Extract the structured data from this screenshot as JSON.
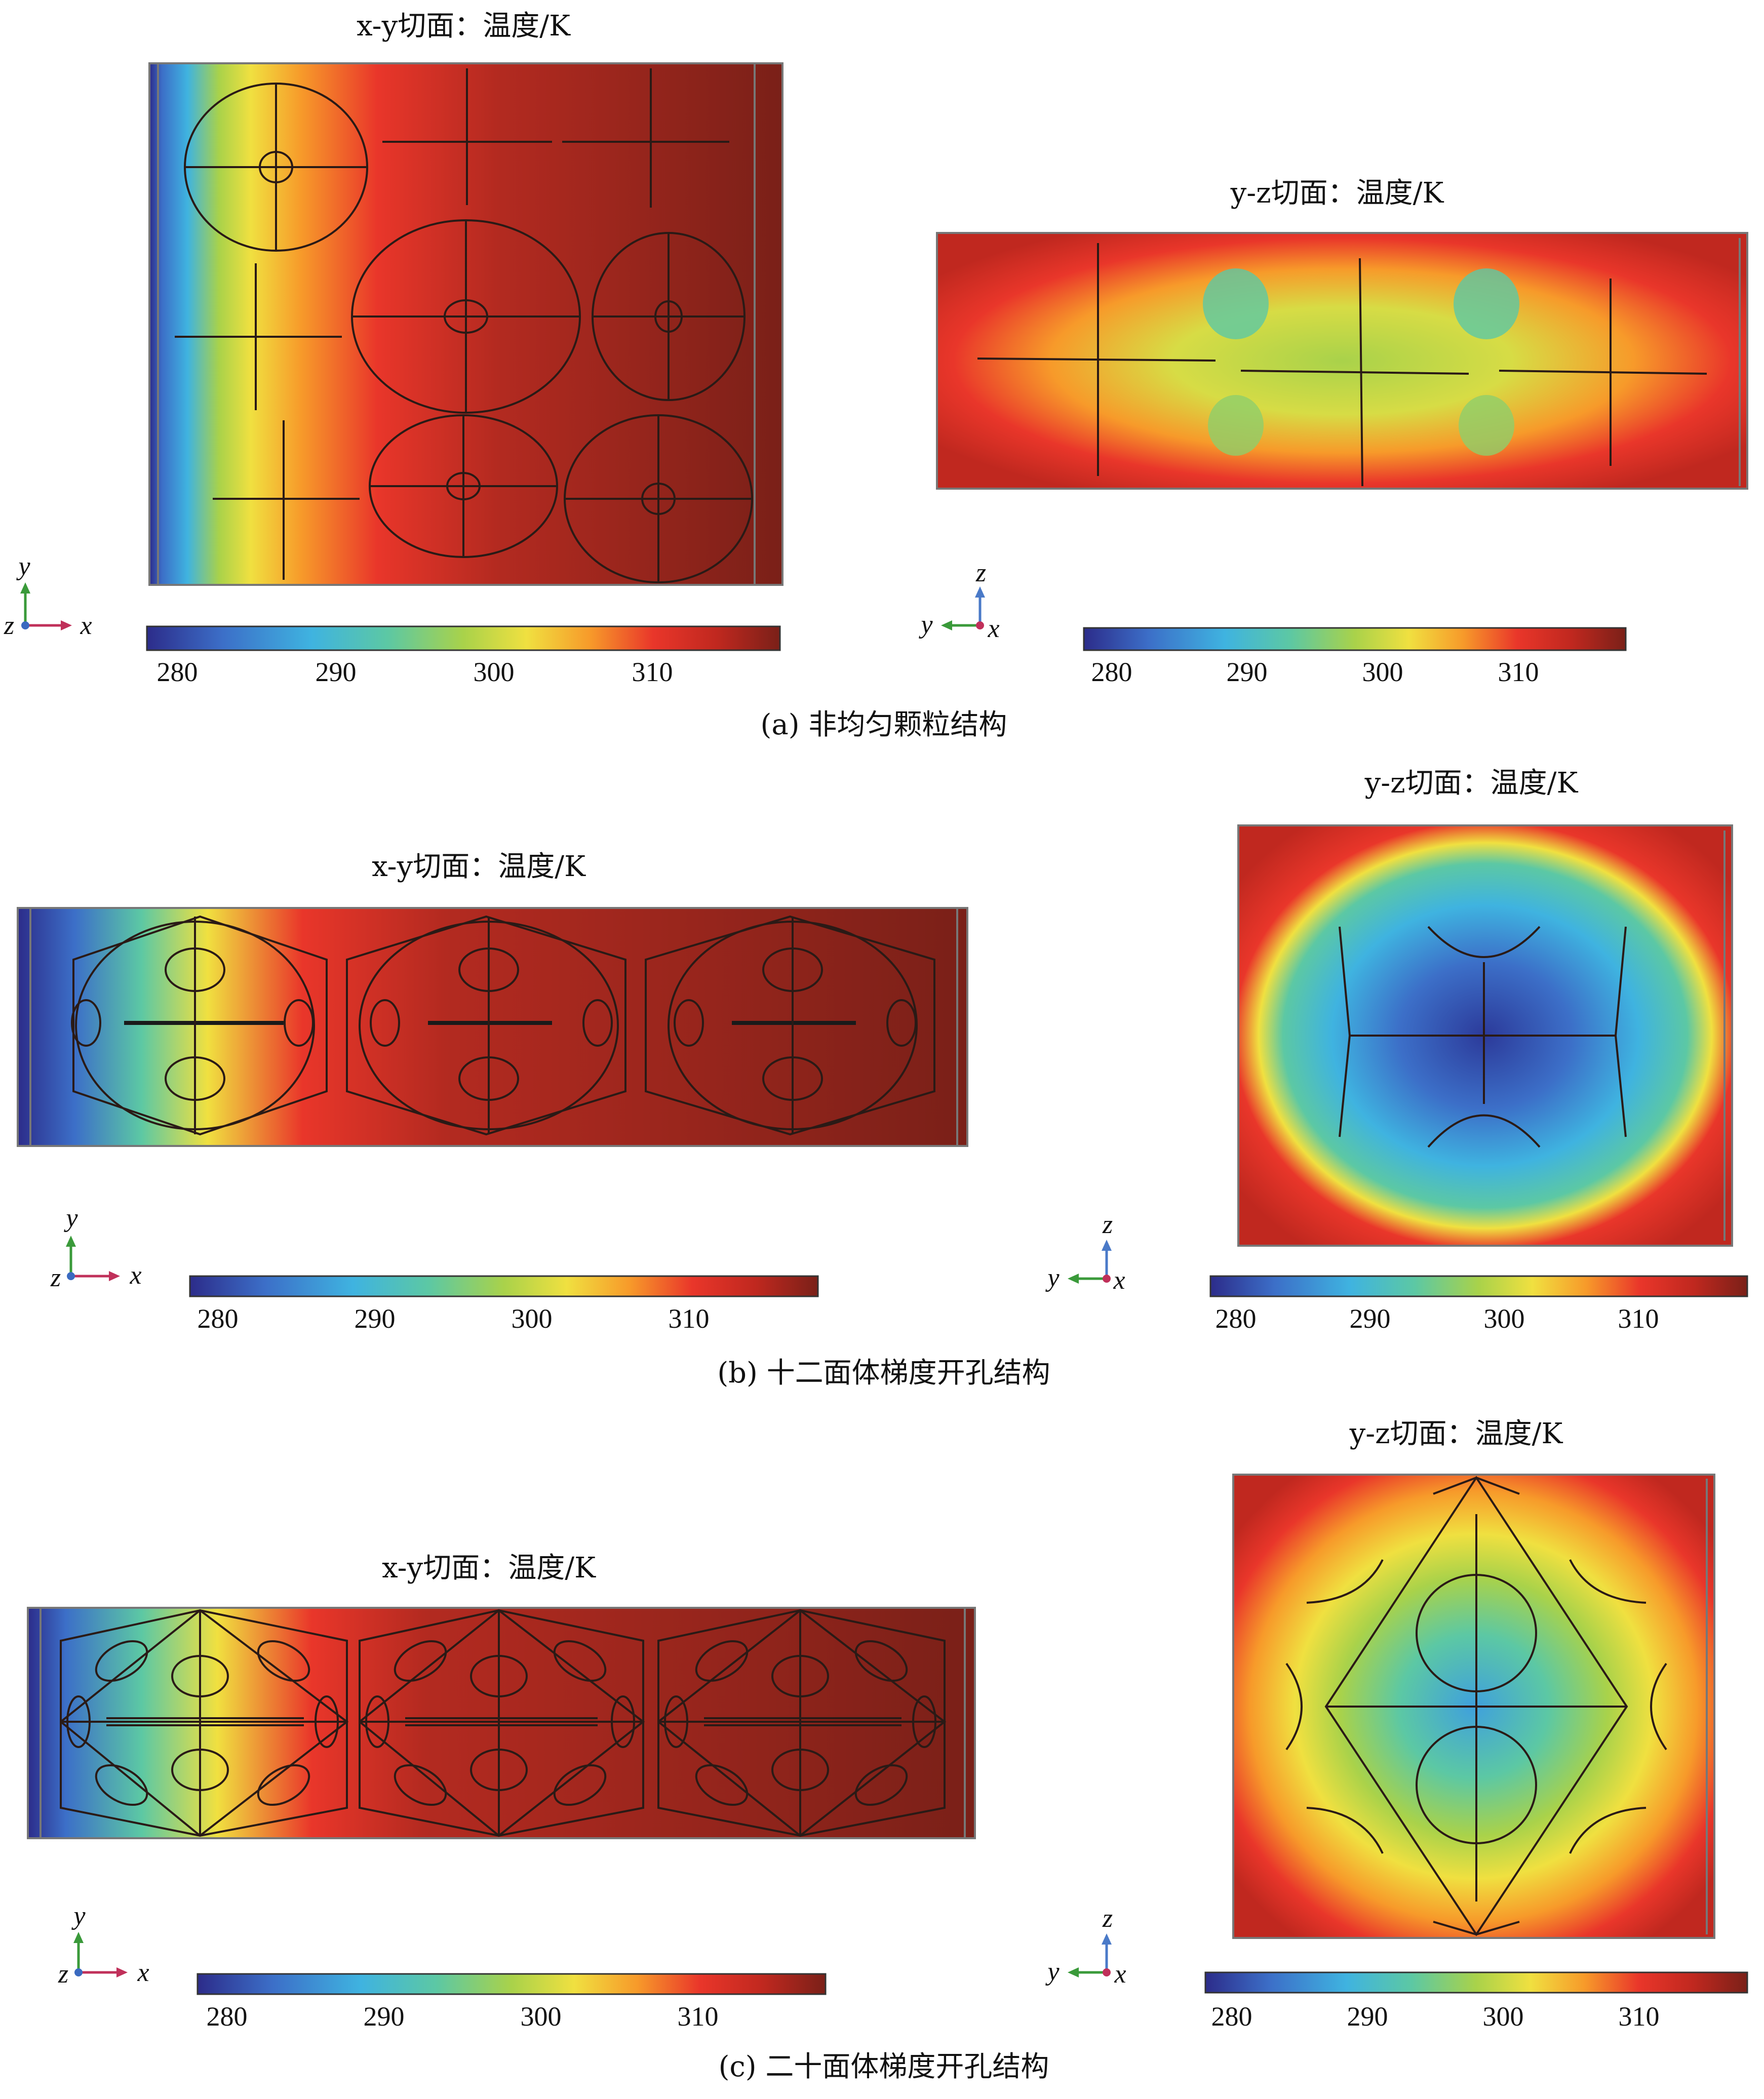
{
  "colorscale": {
    "stops": [
      "#2c2c8a",
      "#3c6fc8",
      "#3fb3e0",
      "#5cc8a4",
      "#a9d24a",
      "#f0e040",
      "#f79a2a",
      "#e9362a",
      "#c0281f",
      "#7a2018"
    ],
    "ticks": [
      "280",
      "290",
      "300",
      "310"
    ]
  },
  "panels": {
    "a": {
      "caption": "(a) 非均匀颗粒结构",
      "xy_title": "x-y切面：温度/K",
      "yz_title": "y-z切面：温度/K",
      "xy_axes": [
        "y",
        "z",
        "x"
      ],
      "yz_axes": [
        "z",
        "y",
        "x"
      ]
    },
    "b": {
      "caption": "(b) 十二面体梯度开孔结构",
      "xy_title": "x-y切面：温度/K",
      "yz_title": "y-z切面：温度/K",
      "xy_axes": [
        "y",
        "z",
        "x"
      ],
      "yz_axes": [
        "z",
        "y",
        "x"
      ]
    },
    "c": {
      "caption": "(c) 二十面体梯度开孔结构",
      "xy_title": "x-y切面：温度/K",
      "yz_title": "y-z切面：温度/K",
      "xy_axes": [
        "y",
        "z",
        "x"
      ],
      "yz_axes": [
        "z",
        "y",
        "x"
      ]
    }
  }
}
